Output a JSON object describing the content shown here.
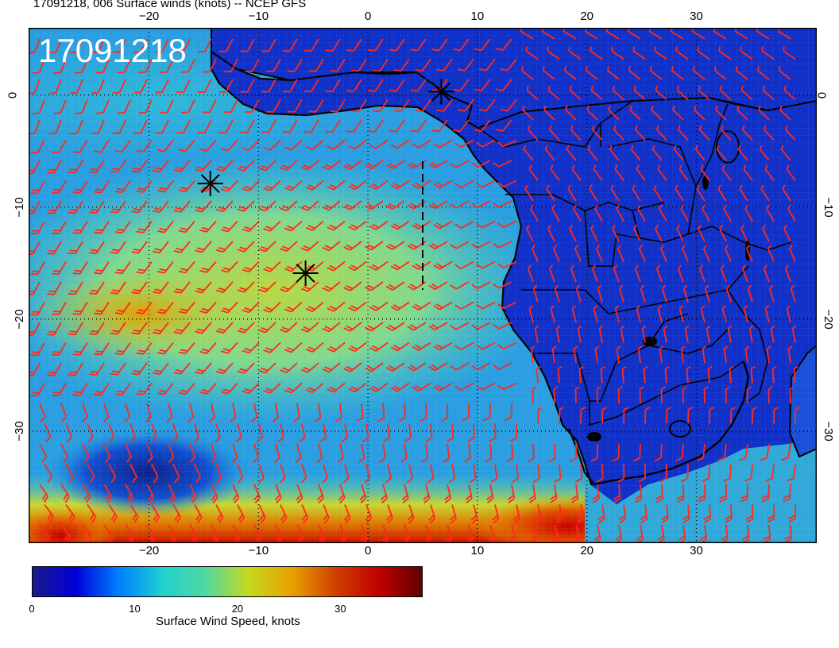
{
  "title": "17091218, 006 Surface winds (knots) -- NCEP GFS",
  "stamp": "17091218",
  "map": {
    "lon_range": [
      -31,
      41
    ],
    "lat_range": [
      -40,
      6
    ],
    "lon_ticks": [
      "−20",
      "−10",
      "0",
      "10",
      "20",
      "30"
    ],
    "lon_tick_values": [
      -20,
      -10,
      0,
      10,
      20,
      30
    ],
    "lat_ticks": [
      "0",
      "−10",
      "−20",
      "−30"
    ],
    "lat_tick_values": [
      0,
      -10,
      -20,
      -30
    ],
    "barb_color": "#ff2a1a",
    "markers": [
      {
        "lon": 6.7,
        "lat": 0.3
      },
      {
        "lon": -14.4,
        "lat": -7.9
      },
      {
        "lon": -5.7,
        "lat": -15.9
      }
    ]
  },
  "colorbar": {
    "label": "Surface Wind Speed, knots",
    "ticks": [
      "0",
      "10",
      "20",
      "30"
    ],
    "tick_values": [
      0,
      10,
      20,
      30
    ],
    "range": [
      0,
      38
    ],
    "colors": [
      "#1a1a8c",
      "#0000d8",
      "#0080ff",
      "#20d0d0",
      "#50d8a0",
      "#c8d820",
      "#e8a000",
      "#d04000",
      "#c00000",
      "#600000"
    ]
  }
}
